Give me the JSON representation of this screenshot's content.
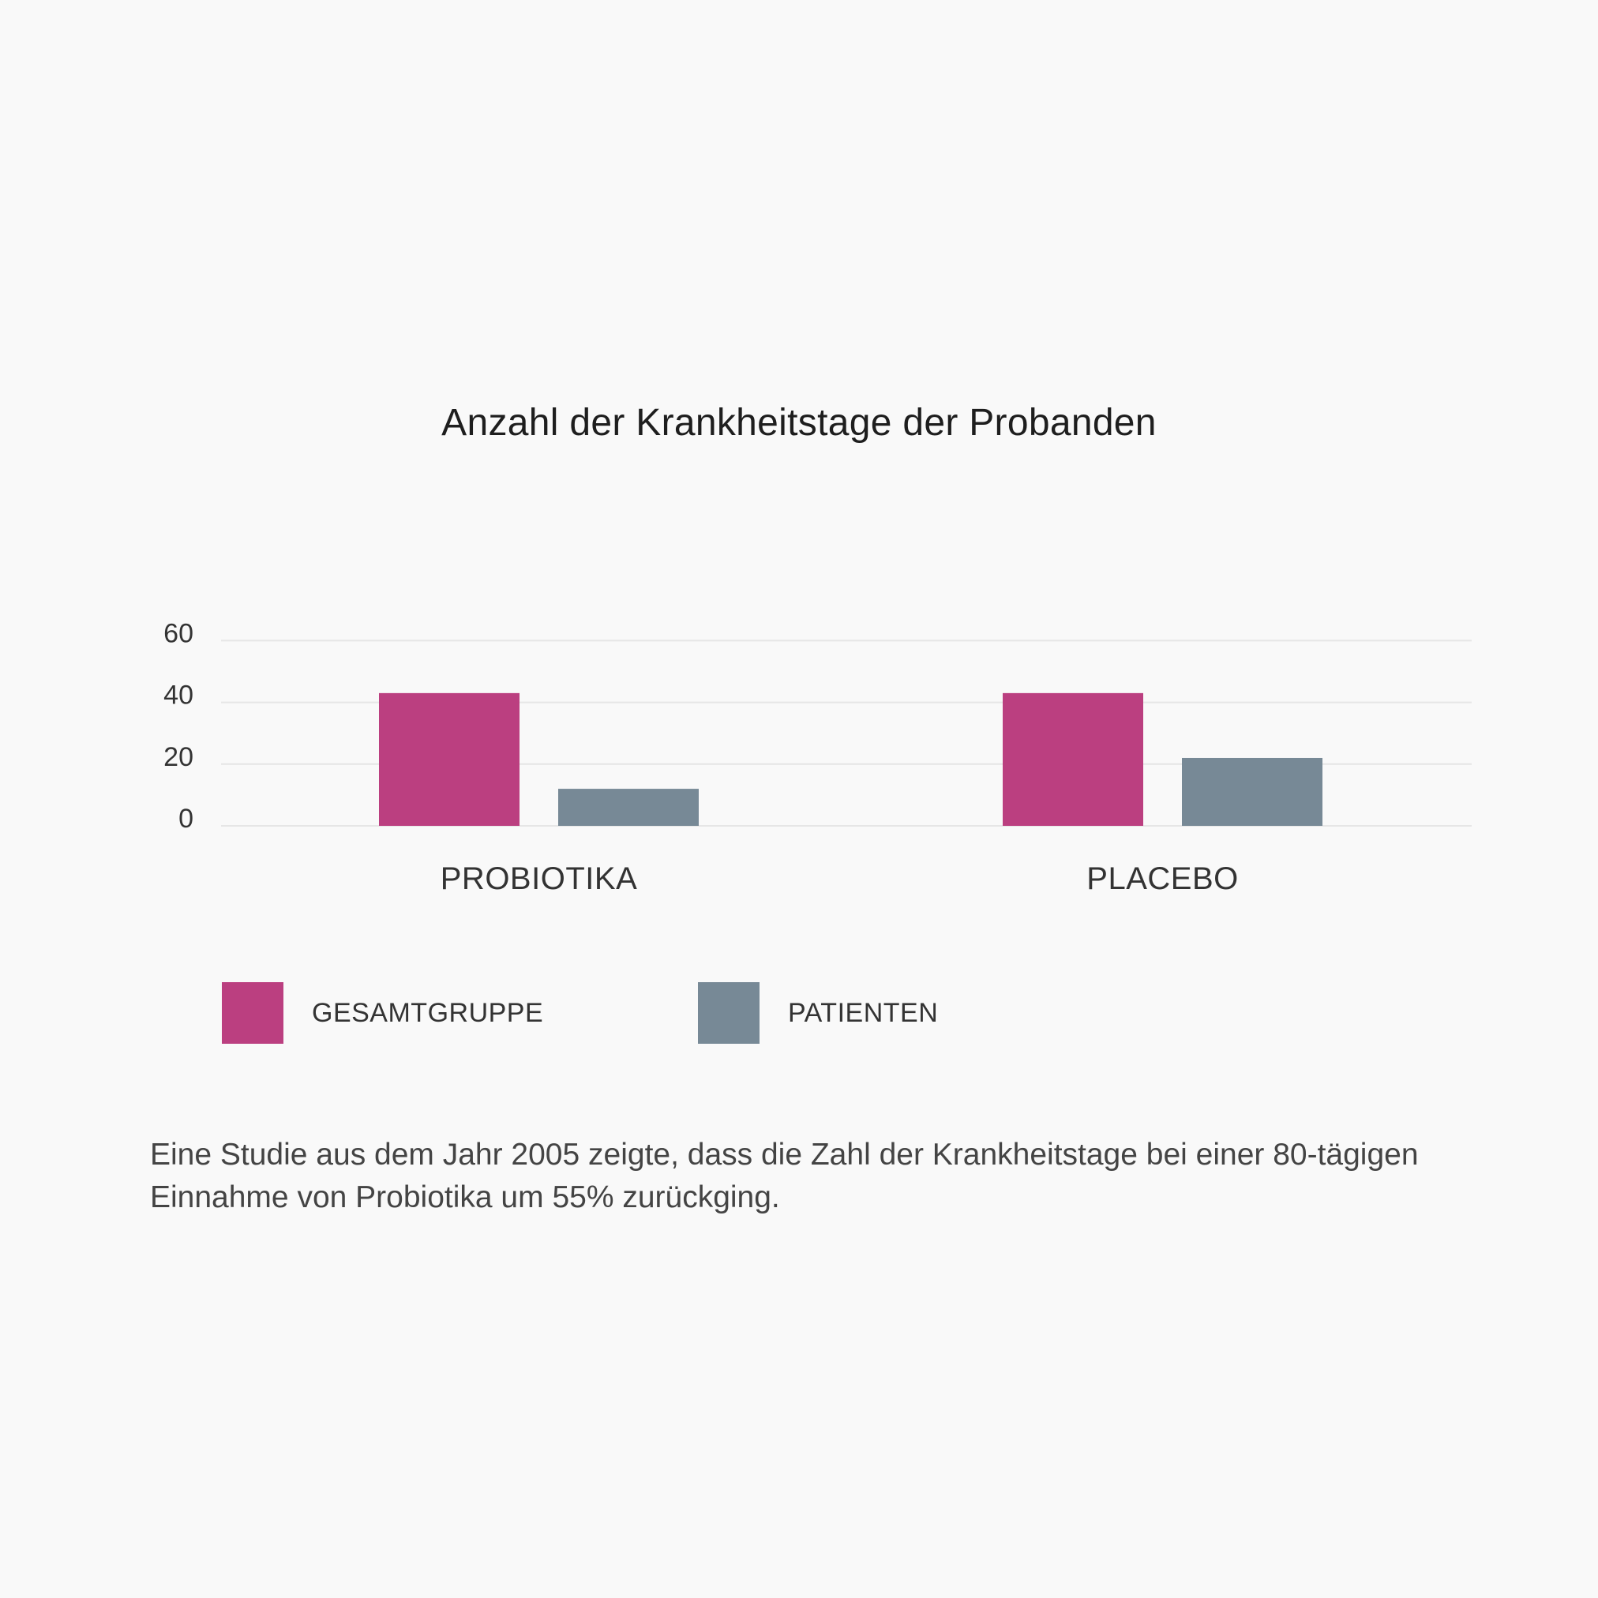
{
  "chart_data": {
    "type": "bar",
    "title": "Anzahl der Krankheitstage der Probanden",
    "categories": [
      "PROBIOTIKA",
      "PLACEBO"
    ],
    "series": [
      {
        "name": "GESAMTGRUPPE",
        "color": "#bb3f80",
        "values": [
          43,
          43
        ]
      },
      {
        "name": "PATIENTEN",
        "color": "#778996",
        "values": [
          12,
          22
        ]
      }
    ],
    "yticks": [
      0,
      20,
      40,
      60
    ],
    "ylim": [
      0,
      60
    ],
    "grid": true,
    "legend_position": "bottom-left"
  },
  "caption": "Eine Studie aus dem Jahr 2005 zeigte, dass die Zahl der Krankheitstage bei einer 80-tägigen Einnahme von Probiotika um 55% zurückging."
}
